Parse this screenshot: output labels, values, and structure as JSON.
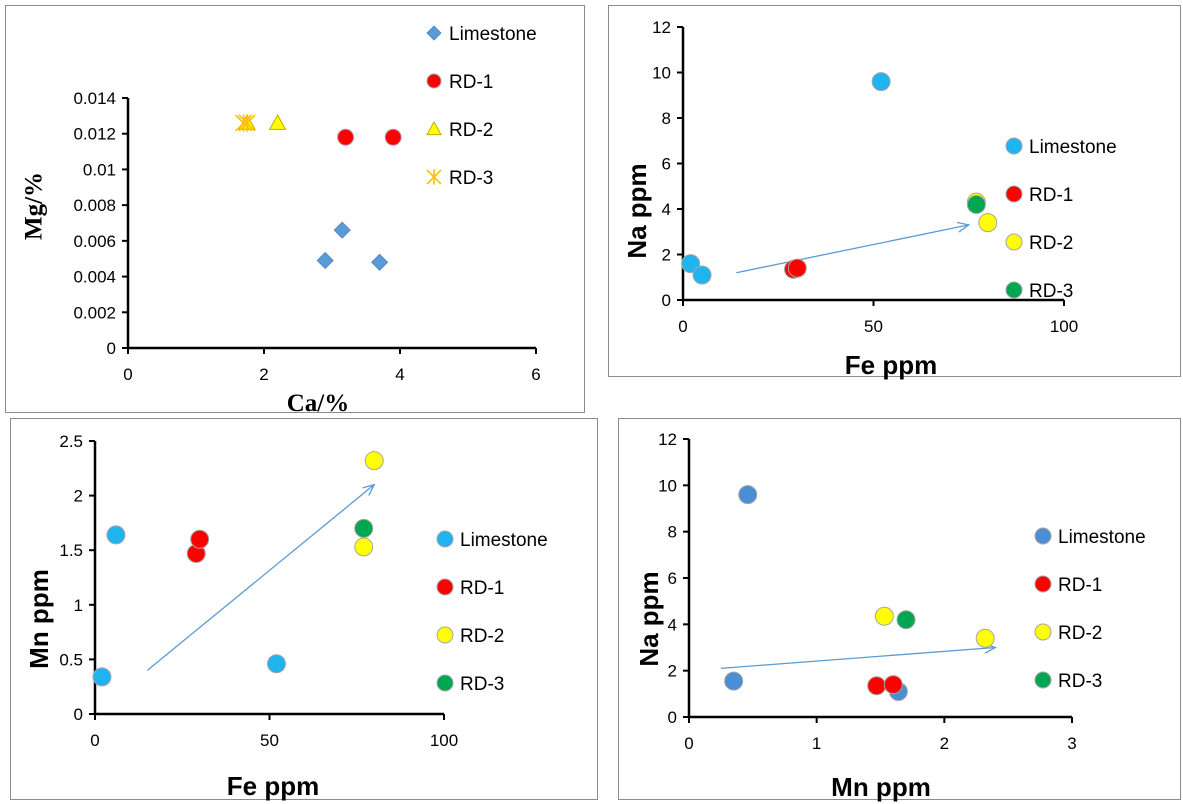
{
  "chart_data": [
    {
      "type": "scatter",
      "xlabel": "Ca/%",
      "ylabel": "Mg/%",
      "xlim": [
        0,
        6
      ],
      "ylim": [
        0,
        0.014
      ],
      "x_ticks": [
        "0",
        "2",
        "4",
        "6"
      ],
      "y_ticks": [
        "0",
        "0.002",
        "0.004",
        "0.006",
        "0.008",
        "0.01",
        "0.012",
        "0.014"
      ],
      "legend_position": "top-right",
      "series": [
        {
          "name": "Limestone",
          "marker": "diamond",
          "color": "#5b9bd5",
          "points": [
            [
              2.9,
              0.0049
            ],
            [
              3.15,
              0.0066
            ],
            [
              3.7,
              0.0048
            ]
          ]
        },
        {
          "name": "RD-1",
          "marker": "circle",
          "color": "#ff0000",
          "points": [
            [
              3.2,
              0.0118
            ],
            [
              3.9,
              0.0118
            ]
          ]
        },
        {
          "name": "RD-2",
          "marker": "triangle",
          "color": "#ffff00",
          "points": [
            [
              1.75,
              0.0126
            ],
            [
              2.2,
              0.0126
            ]
          ]
        },
        {
          "name": "RD-3",
          "marker": "asterisk",
          "color": "#ffc000",
          "points": [
            [
              1.7,
              0.0126
            ],
            [
              1.75,
              0.0126
            ]
          ]
        }
      ],
      "arrow": null
    },
    {
      "type": "scatter",
      "xlabel": "Fe ppm",
      "ylabel": "Na ppm",
      "xlim": [
        0,
        100
      ],
      "ylim": [
        0,
        12
      ],
      "x_ticks": [
        "0",
        "50",
        "100"
      ],
      "y_ticks": [
        "0",
        "2",
        "4",
        "6",
        "8",
        "10",
        "12"
      ],
      "legend_position": "right",
      "series": [
        {
          "name": "Limestone",
          "marker": "circle",
          "color": "#1fb4f0",
          "points": [
            [
              52,
              9.6
            ],
            [
              2,
              1.6
            ],
            [
              5,
              1.1
            ]
          ]
        },
        {
          "name": "RD-1",
          "marker": "circle",
          "color": "#ff0000",
          "points": [
            [
              29,
              1.35
            ],
            [
              30,
              1.4
            ]
          ]
        },
        {
          "name": "RD-2",
          "marker": "circle",
          "color": "#ffff00",
          "points": [
            [
              77,
              4.3
            ],
            [
              80,
              3.4
            ]
          ]
        },
        {
          "name": "RD-3",
          "marker": "circle",
          "color": "#00a651",
          "points": [
            [
              77,
              4.2
            ]
          ]
        }
      ],
      "arrow": {
        "from": [
          14,
          1.2
        ],
        "to": [
          75,
          3.3
        ],
        "color": "#5b9bd5"
      }
    },
    {
      "type": "scatter",
      "xlabel": "Fe ppm",
      "ylabel": "Mn ppm",
      "xlim": [
        0,
        100
      ],
      "ylim": [
        0,
        2.5
      ],
      "x_ticks": [
        "0",
        "50",
        "100"
      ],
      "y_ticks": [
        "0",
        "0.5",
        "1",
        "1.5",
        "2",
        "2.5"
      ],
      "legend_position": "right",
      "series": [
        {
          "name": "Limestone",
          "marker": "circle",
          "color": "#1fb4f0",
          "points": [
            [
              6,
              1.64
            ],
            [
              2,
              0.34
            ],
            [
              52,
              0.46
            ]
          ]
        },
        {
          "name": "RD-1",
          "marker": "circle",
          "color": "#ff0000",
          "points": [
            [
              29,
              1.47
            ],
            [
              30,
              1.6
            ]
          ]
        },
        {
          "name": "RD-2",
          "marker": "circle",
          "color": "#ffff00",
          "points": [
            [
              80,
              2.32
            ],
            [
              77,
              1.53
            ]
          ]
        },
        {
          "name": "RD-3",
          "marker": "circle",
          "color": "#00a651",
          "points": [
            [
              77,
              1.7
            ]
          ]
        }
      ],
      "arrow": {
        "from": [
          15,
          0.4
        ],
        "to": [
          80,
          2.1
        ],
        "color": "#5b9bd5"
      }
    },
    {
      "type": "scatter",
      "xlabel": "Mn ppm",
      "ylabel": "Na ppm",
      "xlim": [
        0,
        3
      ],
      "ylim": [
        0,
        12
      ],
      "x_ticks": [
        "0",
        "1",
        "2",
        "3"
      ],
      "y_ticks": [
        "0",
        "2",
        "4",
        "6",
        "8",
        "10",
        "12"
      ],
      "legend_position": "right",
      "series": [
        {
          "name": "Limestone",
          "marker": "circle",
          "color": "#4a8ed6",
          "points": [
            [
              0.46,
              9.6
            ],
            [
              0.35,
              1.55
            ],
            [
              1.64,
              1.1
            ]
          ]
        },
        {
          "name": "RD-1",
          "marker": "circle",
          "color": "#ff0000",
          "points": [
            [
              1.47,
              1.35
            ],
            [
              1.6,
              1.4
            ]
          ]
        },
        {
          "name": "RD-2",
          "marker": "circle",
          "color": "#ffff00",
          "points": [
            [
              1.53,
              4.35
            ],
            [
              2.32,
              3.4
            ]
          ]
        },
        {
          "name": "RD-3",
          "marker": "circle",
          "color": "#00a651",
          "points": [
            [
              1.7,
              4.2
            ]
          ]
        }
      ],
      "arrow": {
        "from": [
          0.25,
          2.1
        ],
        "to": [
          2.4,
          3.0
        ],
        "color": "#5b9bd5"
      }
    }
  ]
}
